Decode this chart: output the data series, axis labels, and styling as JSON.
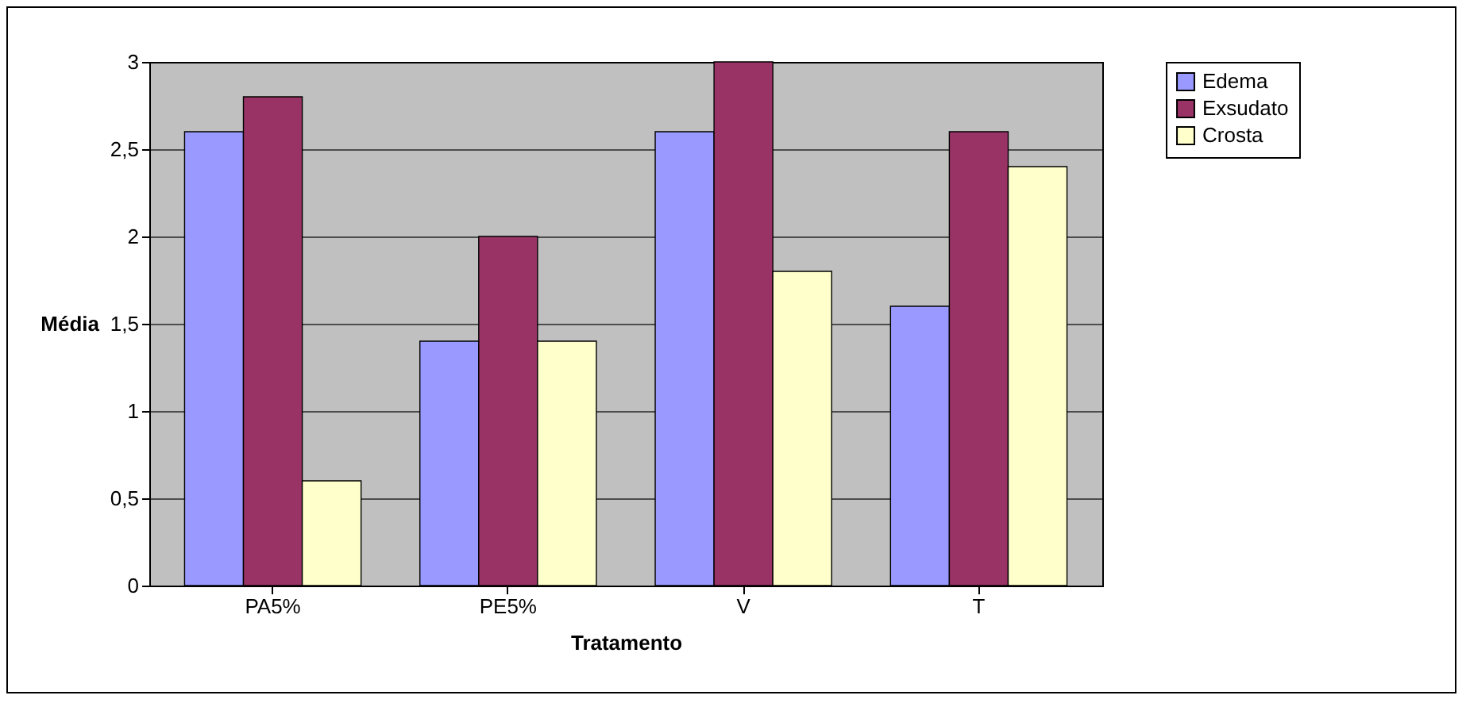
{
  "chart_data": {
    "type": "bar",
    "xlabel": "Tratamento",
    "ylabel": "Média",
    "categories": [
      "PA5%",
      "PE5%",
      "V",
      "T"
    ],
    "series": [
      {
        "name": "Edema",
        "color": "#9999ff",
        "values": [
          2.6,
          1.4,
          2.6,
          1.6
        ]
      },
      {
        "name": "Exsudato",
        "color": "#993366",
        "values": [
          2.8,
          2.0,
          3.0,
          2.6
        ]
      },
      {
        "name": "Crosta",
        "color": "#ffffcc",
        "values": [
          0.6,
          1.4,
          1.8,
          2.4
        ]
      }
    ],
    "ylim": [
      0,
      3
    ],
    "yticks": [
      0,
      {
        "value": 0.5,
        "label": "0,5"
      },
      1,
      {
        "value": 1.5,
        "label": "1,5"
      },
      2,
      {
        "value": 2.5,
        "label": "2,5"
      },
      3
    ],
    "grid": "y",
    "legend": "right"
  }
}
